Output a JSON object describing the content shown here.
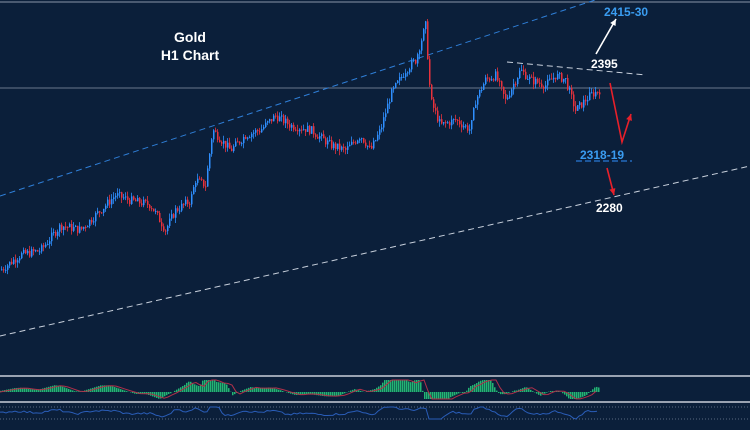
{
  "chart_data": {
    "type": "candlestick",
    "title": "Gold",
    "subtitle": "H1 Chart",
    "colors": {
      "up": "#2f8fff",
      "down": "#e8323c",
      "background": "#0b1f3a",
      "histogram": "#22b573",
      "signal": "#b0304a",
      "rsi": "#2a5db8"
    },
    "price_path": [
      [
        0,
        2211
      ],
      [
        20,
        2225
      ],
      [
        40,
        2229
      ],
      [
        60,
        2252
      ],
      [
        80,
        2248
      ],
      [
        100,
        2266
      ],
      [
        115,
        2280
      ],
      [
        130,
        2275
      ],
      [
        150,
        2271
      ],
      [
        165,
        2248
      ],
      [
        175,
        2266
      ],
      [
        190,
        2275
      ],
      [
        195,
        2294
      ],
      [
        205,
        2289
      ],
      [
        212,
        2340
      ],
      [
        230,
        2321
      ],
      [
        245,
        2335
      ],
      [
        260,
        2340
      ],
      [
        275,
        2353
      ],
      [
        290,
        2344
      ],
      [
        310,
        2340
      ],
      [
        330,
        2326
      ],
      [
        345,
        2321
      ],
      [
        360,
        2335
      ],
      [
        370,
        2321
      ],
      [
        380,
        2340
      ],
      [
        390,
        2372
      ],
      [
        405,
        2395
      ],
      [
        415,
        2404
      ],
      [
        425,
        2436
      ],
      [
        430,
        2367
      ],
      [
        440,
        2344
      ],
      [
        455,
        2349
      ],
      [
        470,
        2340
      ],
      [
        475,
        2367
      ],
      [
        485,
        2386
      ],
      [
        495,
        2390
      ],
      [
        505,
        2367
      ],
      [
        515,
        2386
      ],
      [
        520,
        2395
      ],
      [
        530,
        2386
      ],
      [
        545,
        2381
      ],
      [
        555,
        2390
      ],
      [
        565,
        2386
      ],
      [
        575,
        2358
      ],
      [
        590,
        2372
      ],
      [
        600,
        2377
      ]
    ],
    "annotations": {
      "target_high": "2415-30",
      "resistance": "2395",
      "support": "2318-19",
      "target_low": "2280"
    },
    "indicators": [
      "histogram oscillator with signal line",
      "RSI-style line"
    ]
  }
}
